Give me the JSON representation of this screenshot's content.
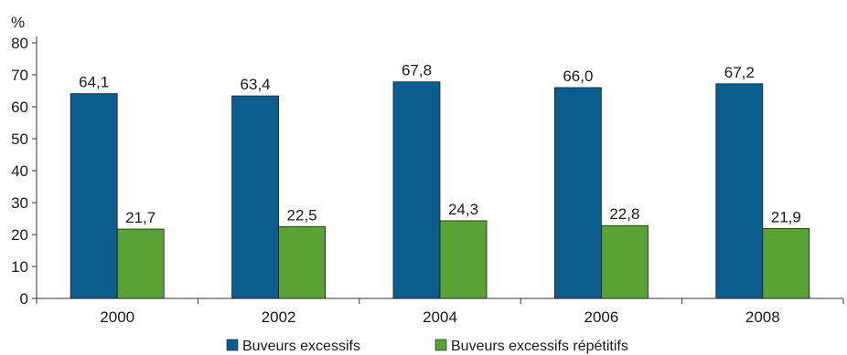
{
  "chart_data": {
    "type": "bar",
    "ylabel": "%",
    "ylim": [
      0,
      80
    ],
    "yticks": [
      "0",
      "10",
      "20",
      "30",
      "40",
      "50",
      "60",
      "70",
      "80"
    ],
    "categories": [
      "2000",
      "2002",
      "2004",
      "2006",
      "2008"
    ],
    "series": [
      {
        "name": "Buveurs excessifs",
        "color": "#0b5d90",
        "values": [
          64.1,
          63.4,
          67.8,
          66.0,
          67.2
        ],
        "labels": [
          "64,1",
          "63,4",
          "67,8",
          "66,0",
          "67,2"
        ]
      },
      {
        "name": "Buveurs excessifs répétitifs",
        "color": "#5aa136",
        "values": [
          21.7,
          22.5,
          24.3,
          22.8,
          21.9
        ],
        "labels": [
          "21,7",
          "22,5",
          "24,3",
          "22,8",
          "21,9"
        ]
      }
    ],
    "grid": false,
    "legend": "bottom"
  }
}
